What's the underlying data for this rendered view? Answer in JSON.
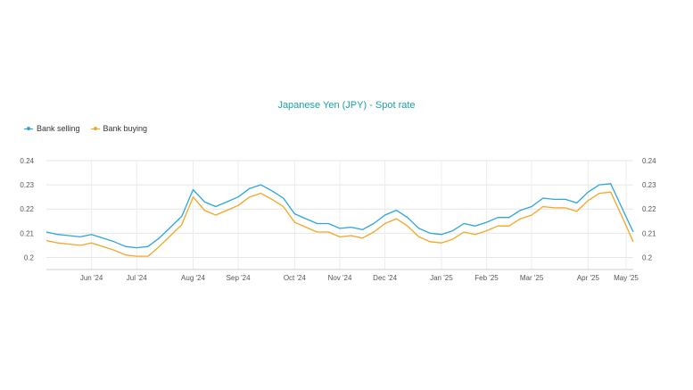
{
  "chart_data": {
    "type": "line",
    "title": "Japanese Yen (JPY) - Spot rate",
    "xlabel": "",
    "ylabel": "",
    "ylim": [
      0.195,
      0.24
    ],
    "yticks": [
      "0.2",
      "0.21",
      "0.22",
      "0.23",
      "0.24"
    ],
    "xticks": [
      "Jun '24",
      "Jul '24",
      "Aug '24",
      "Sep '24",
      "Oct '24",
      "Nov '24",
      "Dec '24",
      "Jan '25",
      "Feb '25",
      "Mar '25",
      "Apr '25",
      "May '25"
    ],
    "x": [
      "May 06",
      "May 13",
      "May 20",
      "May 27",
      "Jun 03",
      "Jun 10",
      "Jun 17",
      "Jun 24",
      "Jul 01",
      "Jul 08",
      "Jul 15",
      "Jul 22",
      "Jul 29",
      "Aug 05",
      "Aug 12",
      "Aug 19",
      "Aug 26",
      "Sep 02",
      "Sep 09",
      "Sep 16",
      "Sep 23",
      "Sep 30",
      "Oct 07",
      "Oct 14",
      "Oct 21",
      "Oct 28",
      "Nov 04",
      "Nov 11",
      "Nov 18",
      "Nov 25",
      "Dec 02",
      "Dec 09",
      "Dec 16",
      "Dec 23",
      "Dec 30",
      "Jan 06",
      "Jan 13",
      "Jan 20",
      "Jan 27",
      "Feb 03",
      "Feb 10",
      "Feb 17",
      "Feb 24",
      "Mar 03",
      "Mar 10",
      "Mar 17",
      "Mar 24",
      "Mar 31",
      "Apr 07",
      "Apr 14",
      "Apr 21",
      "Apr 28",
      "May 05"
    ],
    "series": [
      {
        "name": "Bank selling",
        "color": "#2ba6de",
        "values": [
          0.2105,
          0.2095,
          0.209,
          0.2085,
          0.2095,
          0.208,
          0.2065,
          0.2045,
          0.204,
          0.2045,
          0.208,
          0.2125,
          0.217,
          0.228,
          0.223,
          0.221,
          0.223,
          0.225,
          0.2285,
          0.23,
          0.2275,
          0.2245,
          0.218,
          0.216,
          0.214,
          0.214,
          0.212,
          0.2125,
          0.2115,
          0.214,
          0.2175,
          0.2195,
          0.2165,
          0.212,
          0.21,
          0.2095,
          0.211,
          0.214,
          0.213,
          0.2145,
          0.2165,
          0.2165,
          0.2195,
          0.221,
          0.2245,
          0.224,
          0.224,
          0.2225,
          0.227,
          0.23,
          0.2305,
          0.2205,
          0.2105
        ]
      },
      {
        "name": "Bank buying",
        "color": "#f5a623",
        "values": [
          0.207,
          0.206,
          0.2055,
          0.205,
          0.206,
          0.2045,
          0.203,
          0.201,
          0.2005,
          0.2005,
          0.2045,
          0.209,
          0.2135,
          0.225,
          0.2195,
          0.2175,
          0.2195,
          0.2215,
          0.225,
          0.2265,
          0.224,
          0.221,
          0.2145,
          0.2125,
          0.2105,
          0.2105,
          0.2085,
          0.209,
          0.208,
          0.2105,
          0.214,
          0.216,
          0.213,
          0.2085,
          0.2065,
          0.206,
          0.2075,
          0.2105,
          0.2095,
          0.211,
          0.213,
          0.213,
          0.216,
          0.2175,
          0.221,
          0.2205,
          0.2205,
          0.219,
          0.2235,
          0.2265,
          0.227,
          0.217,
          0.2065
        ]
      }
    ],
    "grid": true,
    "legend": "top-left"
  }
}
